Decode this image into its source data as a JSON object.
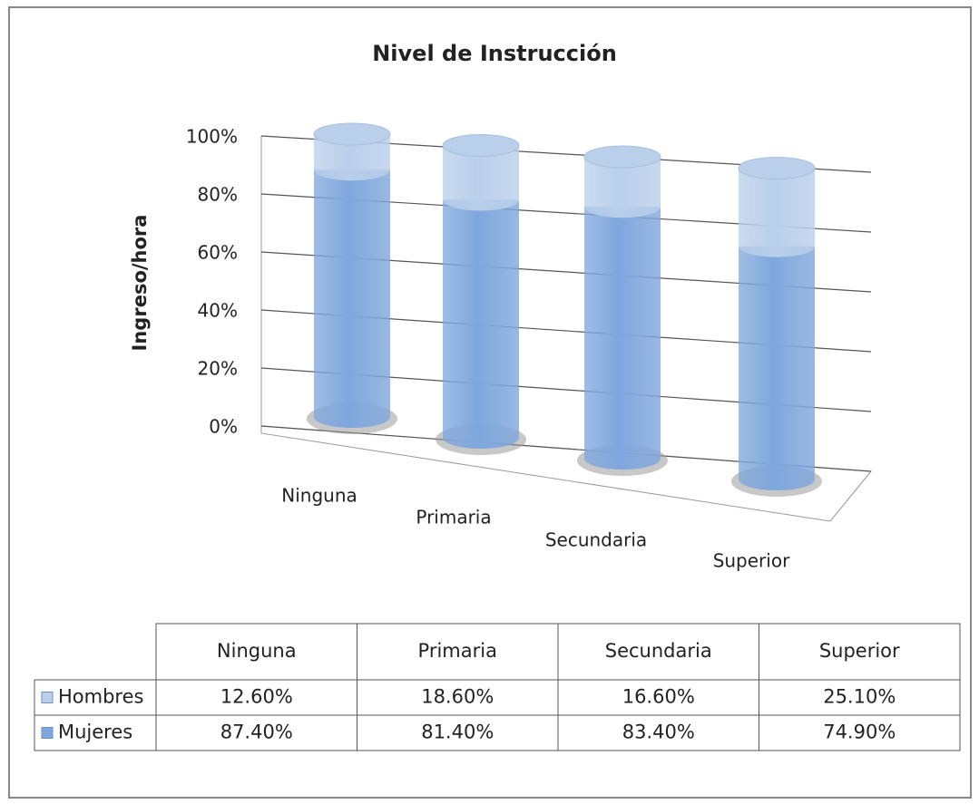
{
  "chart_data": {
    "type": "bar3d_stacked",
    "title": "Nivel de Instrucción",
    "y_label": "Ingreso/hora",
    "categories": [
      "Ninguna",
      "Primaria",
      "Secundaria",
      "Superior"
    ],
    "series": [
      {
        "name": "Hombres",
        "color": "#b9cfea",
        "values": [
          12.6,
          18.6,
          16.6,
          25.1
        ],
        "value_labels": [
          "12.60%",
          "18.60%",
          "16.60%",
          "25.10%"
        ]
      },
      {
        "name": "Mujeres",
        "color": "#7fa7dd",
        "values": [
          87.4,
          81.4,
          83.4,
          74.9
        ],
        "value_labels": [
          "87.40%",
          "81.40%",
          "83.40%",
          "74.90%"
        ]
      }
    ],
    "ylim": [
      0,
      100
    ],
    "yticks": [
      {
        "value": 0,
        "label": "0%"
      },
      {
        "value": 20,
        "label": "20%"
      },
      {
        "value": 40,
        "label": "40%"
      },
      {
        "value": 60,
        "label": "60%"
      },
      {
        "value": 80,
        "label": "80%"
      },
      {
        "value": 100,
        "label": "100%"
      }
    ],
    "grid": true,
    "data_table": true
  }
}
